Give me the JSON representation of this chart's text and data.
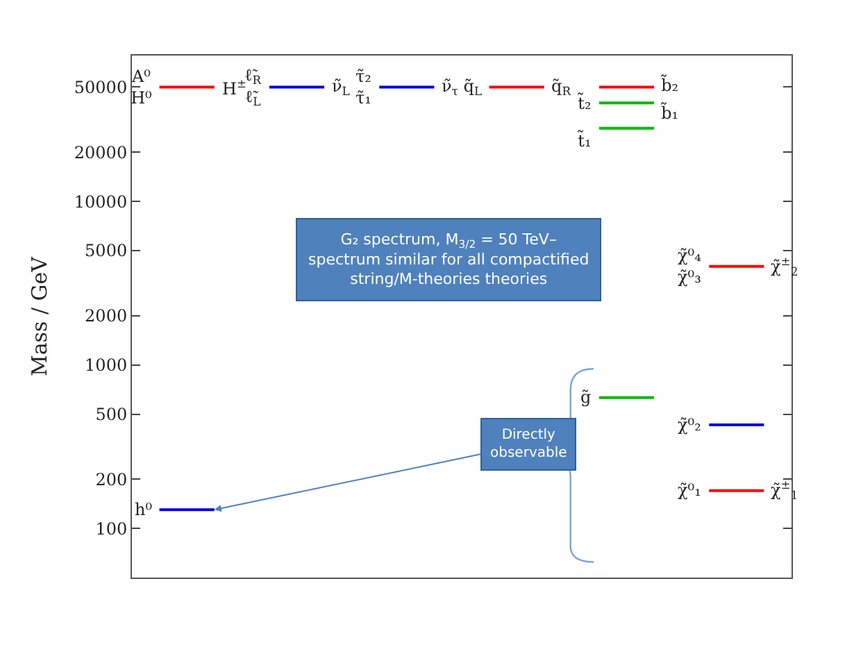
{
  "chart_data": {
    "type": "line",
    "ylabel": "Mass / GeV",
    "log": true,
    "categories": [
      null,
      null,
      null,
      null,
      null,
      null,
      null,
      null,
      null,
      null,
      null,
      null
    ],
    "ylim": [
      50,
      78000
    ],
    "yticks": [
      100,
      200,
      500,
      1000,
      2000,
      5000,
      10000,
      20000,
      50000
    ],
    "series": [
      {
        "color": "#ff0000",
        "values": [
          50000,
          50000,
          null,
          null,
          null,
          null,
          null,
          null,
          null,
          null,
          null,
          null
        ]
      },
      {
        "color": "#0000dd",
        "values": [
          130,
          130,
          null,
          null,
          null,
          null,
          null,
          null,
          null,
          null,
          null,
          null
        ]
      },
      {
        "color": "#0000dd",
        "values": [
          null,
          null,
          50000,
          50000,
          null,
          null,
          null,
          null,
          null,
          null,
          null,
          null
        ]
      },
      {
        "color": "#0000dd",
        "values": [
          null,
          null,
          null,
          null,
          50000,
          50000,
          null,
          null,
          null,
          null,
          null,
          null
        ]
      },
      {
        "color": "#ff0000",
        "values": [
          null,
          null,
          null,
          null,
          null,
          null,
          50000,
          50000,
          null,
          null,
          null,
          null
        ]
      },
      {
        "color": "#ff0000",
        "values": [
          null,
          null,
          null,
          null,
          null,
          null,
          null,
          null,
          50000,
          50000,
          null,
          null
        ]
      },
      {
        "color": "#00bb00",
        "values": [
          null,
          null,
          null,
          null,
          null,
          null,
          null,
          null,
          40000,
          40000,
          null,
          null
        ]
      },
      {
        "color": "#00bb00",
        "values": [
          null,
          null,
          null,
          null,
          null,
          null,
          null,
          null,
          28000,
          28000,
          null,
          null
        ]
      },
      {
        "color": "#00bb00",
        "values": [
          null,
          null,
          null,
          null,
          null,
          null,
          null,
          null,
          630,
          630,
          null,
          null
        ]
      },
      {
        "color": "#ff0000",
        "values": [
          null,
          null,
          null,
          null,
          null,
          null,
          null,
          null,
          null,
          null,
          4000,
          4000
        ]
      },
      {
        "color": "#0000dd",
        "values": [
          null,
          null,
          null,
          null,
          null,
          null,
          null,
          null,
          null,
          null,
          430,
          430
        ]
      },
      {
        "color": "#ff0000",
        "values": [
          null,
          null,
          null,
          null,
          null,
          null,
          null,
          null,
          null,
          null,
          170,
          170
        ]
      }
    ],
    "annotations": [
      "A⁰\nH⁰",
      "H$^{±}$",
      "ℓ̃$_{R}$\nℓ̃$_{L}$",
      "ν̃$_{L}$",
      "τ̃₂\nτ̃₁",
      "ν̃$_{τ}$ q̃$_{L}$",
      "q̃$_{R}$",
      "t̃₂",
      "t̃₁",
      "b̃₂",
      "b̃₁",
      "χ̃⁰₄\nχ̃⁰₃",
      "χ̃$^{±}$$_{2}$",
      "g̃",
      "χ̃⁰₂",
      "χ̃⁰₁",
      "χ̃$^{±}$$_{1}$",
      "h⁰",
      "G₂ spectrum, M$_{3/2}$ = 50 TeV–\nspectrum similar for all compactified\nstring/M-theories theories",
      "Directly\nobservable"
    ]
  }
}
